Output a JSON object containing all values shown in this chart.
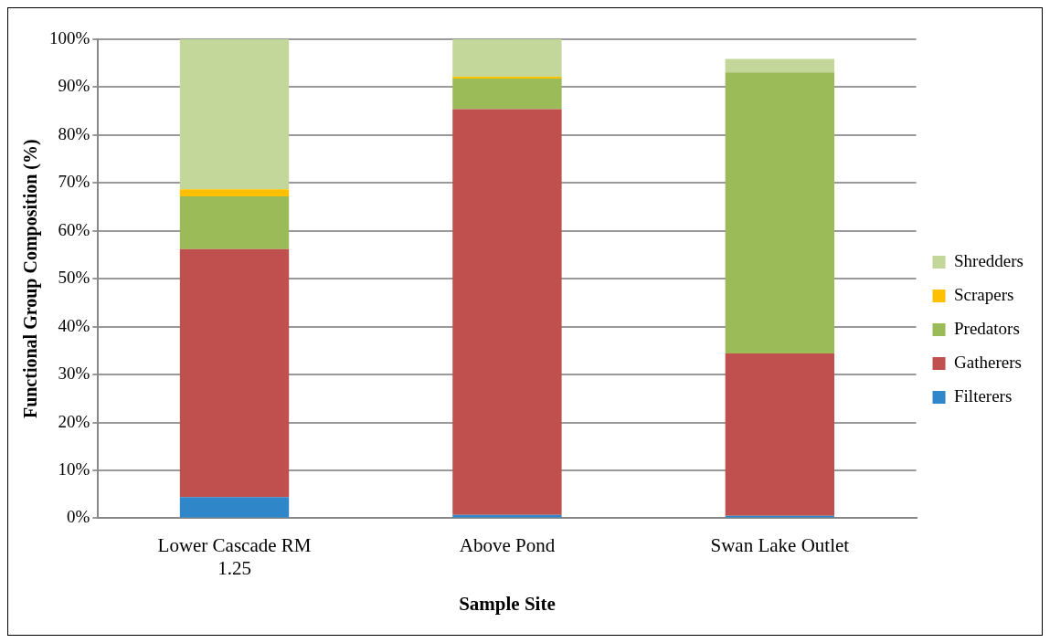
{
  "chart_data": {
    "type": "bar",
    "stacked": true,
    "xlabel": "Sample Site",
    "ylabel": "Functional Group Composition (%)",
    "categories": [
      "Lower Cascade RM 1.25",
      "Above Pond",
      "Swan Lake Outlet"
    ],
    "series": [
      {
        "name": "Filterers",
        "color": "#2f86c8",
        "values": [
          4.4,
          0.7,
          0.5
        ]
      },
      {
        "name": "Gatherers",
        "color": "#c0504d",
        "values": [
          51.8,
          84.7,
          33.9
        ]
      },
      {
        "name": "Predators",
        "color": "#9bbb59",
        "values": [
          11,
          6.4,
          58.7
        ]
      },
      {
        "name": "Scrapers",
        "color": "#ffc000",
        "values": [
          1.5,
          0.4,
          0
        ]
      },
      {
        "name": "Shredders",
        "color": "#c4d79b",
        "values": [
          31.3,
          7.8,
          2.8
        ]
      }
    ],
    "ylim": [
      0,
      100
    ],
    "yticks": [
      {
        "value": 0,
        "label": "0%"
      },
      {
        "value": 10,
        "label": "10%"
      },
      {
        "value": 20,
        "label": "20%"
      },
      {
        "value": 30,
        "label": "30%"
      },
      {
        "value": 40,
        "label": "40%"
      },
      {
        "value": 50,
        "label": "50%"
      },
      {
        "value": 60,
        "label": "60%"
      },
      {
        "value": 70,
        "label": "70%"
      },
      {
        "value": 80,
        "label": "80%"
      },
      {
        "value": 90,
        "label": "90%"
      },
      {
        "value": 100,
        "label": "100%"
      }
    ],
    "grid": "y",
    "legend": "right"
  }
}
